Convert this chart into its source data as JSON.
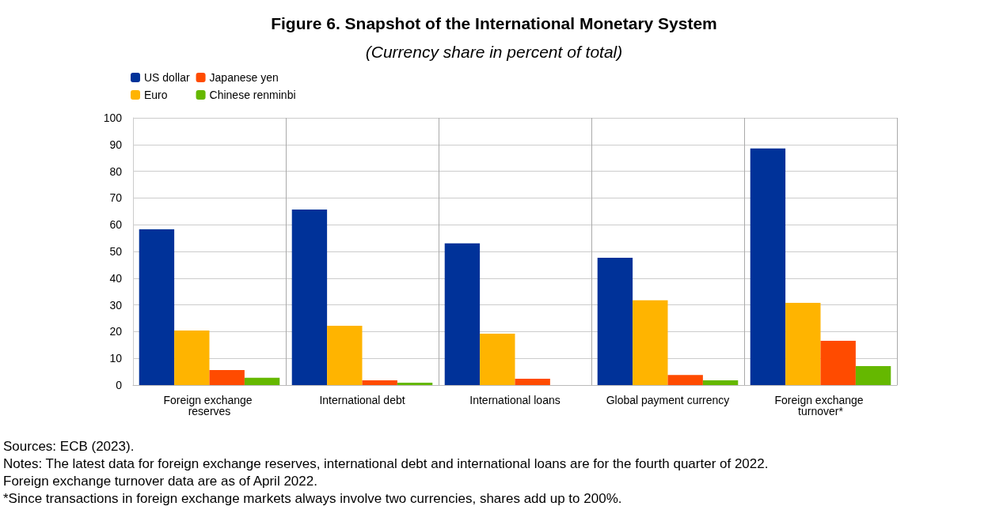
{
  "chart_data": {
    "type": "bar",
    "title": "Figure 6. Snapshot of the International Monetary System",
    "subtitle": "(Currency share in percent of total)",
    "categories": [
      "Foreign exchange reserves",
      "International debt",
      "International loans",
      "Global payment currency",
      "Foreign exchange turnover*"
    ],
    "series": [
      {
        "name": "US dollar",
        "color": "#003299",
        "values": [
          58.3,
          65.7,
          53,
          47.6,
          88.5
        ]
      },
      {
        "name": "Euro",
        "color": "#ffb400",
        "values": [
          20.4,
          22.2,
          19.2,
          31.7,
          30.8
        ]
      },
      {
        "name": "Japanese yen",
        "color": "#ff4b00",
        "values": [
          5.6,
          1.8,
          2.4,
          3.8,
          16.6
        ]
      },
      {
        "name": "Chinese renminbi",
        "color": "#65b800",
        "values": [
          2.7,
          0.9,
          null,
          1.8,
          7.1
        ]
      }
    ],
    "ylim": [
      0,
      100
    ],
    "yticks": [
      0,
      10,
      20,
      30,
      40,
      50,
      60,
      70,
      80,
      90,
      100
    ],
    "grid": true,
    "legend": "top left",
    "annotations": [
      "Sources: ECB (2023).",
      "Notes: The latest data for foreign exchange reserves, international debt and international loans are for the fourth quarter of 2022.",
      "Foreign exchange turnover data are as of April 2022.",
      "*Since transactions in foreign exchange markets always involve two currencies, shares add up to 200%."
    ]
  }
}
